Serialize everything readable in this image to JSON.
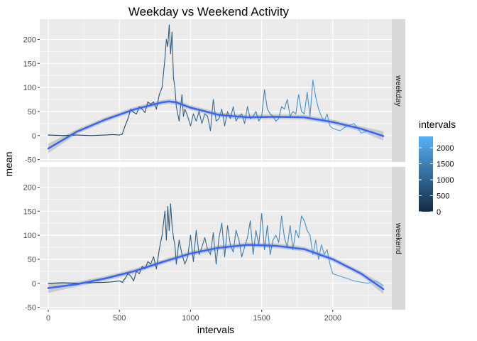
{
  "chart_data": {
    "type": "line",
    "title": "Weekday vs Weekend Activity",
    "xlabel": "intervals",
    "ylabel": "mean",
    "xlim": [
      -60,
      2415
    ],
    "ylim": [
      -55,
      242
    ],
    "x_ticks": [
      0,
      500,
      1000,
      1500,
      2000
    ],
    "y_ticks": [
      -50,
      0,
      50,
      100,
      150,
      200
    ],
    "legend": {
      "title": "intervals",
      "placement": "right",
      "ticks": [
        0,
        500,
        1000,
        1500,
        2000
      ],
      "range": [
        0,
        2355
      ],
      "low_color": "#132B43",
      "high_color": "#56B1F7"
    },
    "smooth_color": "#3366FF",
    "band_color": "#999999",
    "panels": [
      {
        "strip": "weekday",
        "series": {
          "x": [
            0,
            100,
            200,
            300,
            400,
            450,
            500,
            520,
            540,
            560,
            580,
            600,
            620,
            640,
            660,
            680,
            700,
            720,
            740,
            760,
            780,
            800,
            820,
            830,
            840,
            850,
            860,
            870,
            880,
            890,
            900,
            910,
            920,
            930,
            940,
            950,
            960,
            980,
            1000,
            1020,
            1040,
            1060,
            1080,
            1100,
            1120,
            1140,
            1160,
            1180,
            1200,
            1220,
            1240,
            1260,
            1280,
            1300,
            1320,
            1340,
            1360,
            1380,
            1400,
            1420,
            1440,
            1460,
            1480,
            1500,
            1520,
            1540,
            1560,
            1580,
            1600,
            1620,
            1640,
            1660,
            1680,
            1700,
            1720,
            1740,
            1760,
            1780,
            1800,
            1820,
            1840,
            1860,
            1880,
            1900,
            1920,
            1940,
            1960,
            1980,
            2000,
            2050,
            2100,
            2150,
            2200,
            2250,
            2300,
            2355
          ],
          "y": [
            1,
            0,
            1,
            0,
            1,
            2,
            1,
            3,
            20,
            35,
            55,
            48,
            45,
            60,
            55,
            48,
            70,
            65,
            70,
            55,
            85,
            100,
            160,
            200,
            185,
            230,
            170,
            215,
            120,
            100,
            60,
            45,
            30,
            60,
            85,
            40,
            55,
            40,
            20,
            45,
            30,
            50,
            25,
            45,
            40,
            10,
            75,
            30,
            35,
            55,
            20,
            50,
            35,
            60,
            30,
            40,
            45,
            25,
            60,
            35,
            40,
            50,
            30,
            40,
            95,
            55,
            45,
            40,
            30,
            35,
            60,
            55,
            75,
            40,
            50,
            45,
            85,
            50,
            45,
            90,
            40,
            115,
            80,
            55,
            40,
            30,
            45,
            20,
            15,
            10,
            20,
            25,
            5,
            10,
            5,
            0
          ]
        },
        "smooth": {
          "x": [
            0,
            200,
            400,
            600,
            800,
            850,
            900,
            1000,
            1200,
            1400,
            1600,
            1800,
            2000,
            2200,
            2355
          ],
          "y": [
            -27,
            8,
            33,
            54,
            69,
            71,
            69,
            58,
            43,
            38,
            39,
            38,
            28,
            14,
            -1
          ]
        }
      },
      {
        "strip": "weekend",
        "series": {
          "x": [
            0,
            100,
            200,
            300,
            400,
            450,
            500,
            520,
            540,
            560,
            580,
            600,
            620,
            640,
            660,
            680,
            700,
            720,
            740,
            760,
            780,
            800,
            820,
            830,
            840,
            850,
            860,
            870,
            880,
            890,
            900,
            920,
            940,
            960,
            980,
            1000,
            1020,
            1040,
            1060,
            1080,
            1100,
            1120,
            1140,
            1160,
            1180,
            1200,
            1220,
            1240,
            1260,
            1280,
            1300,
            1320,
            1340,
            1360,
            1380,
            1400,
            1420,
            1440,
            1460,
            1480,
            1500,
            1520,
            1540,
            1560,
            1580,
            1600,
            1620,
            1640,
            1660,
            1680,
            1700,
            1720,
            1740,
            1760,
            1780,
            1800,
            1820,
            1840,
            1860,
            1880,
            1900,
            1920,
            1940,
            1960,
            1980,
            2000,
            2050,
            2100,
            2150,
            2200,
            2250,
            2300,
            2355
          ],
          "y": [
            0,
            1,
            0,
            1,
            2,
            3,
            5,
            2,
            10,
            20,
            15,
            5,
            25,
            20,
            35,
            30,
            45,
            40,
            55,
            30,
            70,
            100,
            150,
            90,
            160,
            110,
            165,
            120,
            95,
            80,
            40,
            90,
            60,
            40,
            55,
            100,
            45,
            110,
            60,
            75,
            95,
            70,
            60,
            105,
            40,
            95,
            125,
            55,
            120,
            80,
            65,
            110,
            90,
            55,
            75,
            95,
            130,
            60,
            110,
            80,
            145,
            70,
            120,
            60,
            90,
            100,
            85,
            140,
            95,
            75,
            120,
            70,
            110,
            95,
            140,
            130,
            110,
            100,
            60,
            90,
            50,
            80,
            60,
            70,
            40,
            20,
            15,
            10,
            5,
            2,
            0,
            5,
            -5
          ]
        },
        "smooth": {
          "x": [
            0,
            200,
            400,
            600,
            800,
            1000,
            1200,
            1400,
            1600,
            1800,
            2000,
            2200,
            2355
          ],
          "y": [
            -10,
            -2,
            10,
            25,
            44,
            62,
            74,
            80,
            78,
            71,
            50,
            20,
            -12
          ]
        }
      }
    ]
  }
}
